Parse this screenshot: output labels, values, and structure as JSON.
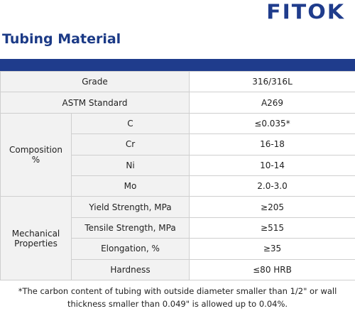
{
  "brand": "FITOK",
  "title": "Tubing Material",
  "table": {
    "grade_label": "Grade",
    "grade_value": "316/316L",
    "astm_label": "ASTM Standard",
    "astm_value": "A269",
    "composition_label_line1": "Composition",
    "composition_label_line2": "%",
    "composition": [
      {
        "element": "C",
        "value": "≤0.035*"
      },
      {
        "element": "Cr",
        "value": "16-18"
      },
      {
        "element": "Ni",
        "value": "10-14"
      },
      {
        "element": "Mo",
        "value": "2.0-3.0"
      }
    ],
    "mechanical_label_line1": "Mechanical",
    "mechanical_label_line2": "Properties",
    "mechanical": [
      {
        "property": "Yield Strength, MPa",
        "value": "≥205"
      },
      {
        "property": "Tensile Strength, MPa",
        "value": "≥515"
      },
      {
        "property": "Elongation, %",
        "value": "≥35"
      },
      {
        "property": "Hardness",
        "value": "≤80 HRB"
      }
    ]
  },
  "footnote_line1": "*The carbon content of tubing with outside diameter smaller than 1/2\" or wall",
  "footnote_line2": "thickness smaller than 0.049\" is allowed up to 0.04%.",
  "colors": {
    "brand_blue": "#1f3c8c",
    "label_bg": "#f2f2f2",
    "border": "#cfcfcf"
  }
}
